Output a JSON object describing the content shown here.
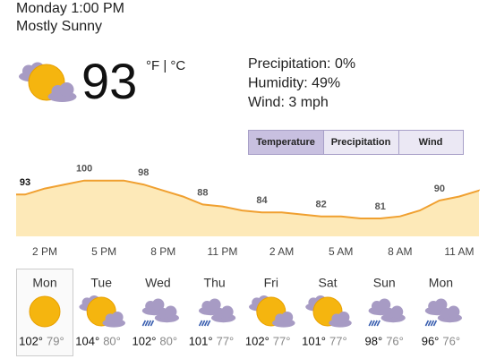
{
  "header": {
    "datetime": "Monday 1:00 PM",
    "condition": "Mostly Sunny"
  },
  "current": {
    "icon": "sun-cloud",
    "temperature": "93",
    "units": "°F | °C",
    "details": [
      "Precipitation: 0%",
      "Humidity: 49%",
      "Wind: 3 mph"
    ]
  },
  "tabs": [
    {
      "label": "Temperature",
      "selected": true
    },
    {
      "label": "Precipitation",
      "selected": false
    },
    {
      "label": "Wind",
      "selected": false
    }
  ],
  "chart_data": {
    "type": "area",
    "color": "#f0a030",
    "fill": "#fde9b8",
    "categories": [
      null,
      "2 PM",
      null,
      null,
      "5 PM",
      null,
      null,
      "8 PM",
      null,
      null,
      "11 PM",
      null,
      null,
      "2 AM",
      null,
      null,
      "5 AM",
      null,
      null,
      "8 AM",
      null,
      null,
      "11 AM",
      null
    ],
    "values": [
      93,
      96,
      98,
      100,
      100,
      100,
      98,
      95,
      92,
      88,
      87,
      85,
      84,
      84,
      83,
      82,
      82,
      81,
      81,
      82,
      85,
      90,
      92,
      95
    ],
    "labeled": [
      0,
      3,
      6,
      9,
      12,
      15,
      18,
      21
    ],
    "ylim": [
      72,
      103
    ]
  },
  "forecast": [
    {
      "day": "Mon",
      "icon": "sun",
      "high": "102°",
      "low": "79°",
      "selected": true
    },
    {
      "day": "Tue",
      "icon": "sun-cloud",
      "high": "104°",
      "low": "80°",
      "selected": false
    },
    {
      "day": "Wed",
      "icon": "storm",
      "high": "102°",
      "low": "80°",
      "selected": false
    },
    {
      "day": "Thu",
      "icon": "storm",
      "high": "101°",
      "low": "77°",
      "selected": false
    },
    {
      "day": "Fri",
      "icon": "sun-cloud",
      "high": "102°",
      "low": "77°",
      "selected": false
    },
    {
      "day": "Sat",
      "icon": "sun-cloud",
      "high": "101°",
      "low": "77°",
      "selected": false
    },
    {
      "day": "Sun",
      "icon": "storm",
      "high": "98°",
      "low": "76°",
      "selected": false
    },
    {
      "day": "Mon",
      "icon": "storm",
      "high": "96°",
      "low": "76°",
      "selected": false
    }
  ]
}
